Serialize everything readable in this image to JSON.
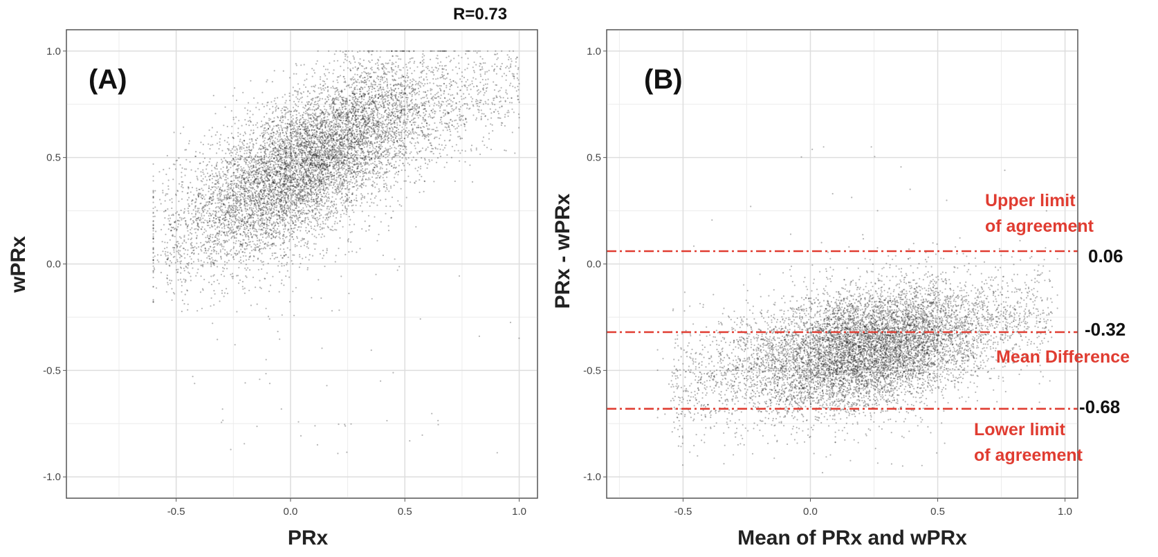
{
  "chart_data": [
    {
      "type": "scatter",
      "panel_label": "(A)",
      "xlabel": "PRx",
      "ylabel": "wPRx",
      "xlim": [
        -0.98,
        1.08
      ],
      "ylim": [
        -1.1,
        1.1
      ],
      "x_ticks": [
        -0.5,
        0.0,
        0.5,
        1.0
      ],
      "y_ticks": [
        -1.0,
        -0.5,
        0.0,
        0.5,
        1.0
      ],
      "x_tick_labels": [
        "-0.5",
        "0.0",
        "0.5",
        "1.0"
      ],
      "y_tick_labels": [
        "-1.0",
        "-0.5",
        "0.0",
        "0.5",
        "1.0"
      ],
      "grid": true,
      "annotation": "R=0.73",
      "point_color": "#1a1a1a",
      "series": [
        {
          "cloud": {
            "x_range": [
              -0.55,
              1.0
            ],
            "trend": "wPRx ≈ 0.55 + 0.4·PRx (curving toward 1.0 at PRx=1.0)",
            "densest_near": [
              0.05,
              0.42
            ]
          }
        }
      ]
    },
    {
      "type": "scatter",
      "panel_label": "(B)",
      "xlabel": "Mean of PRx and wPRx",
      "ylabel": "PRx - wPRx",
      "xlim": [
        -0.8,
        1.05
      ],
      "ylim": [
        -1.1,
        1.1
      ],
      "x_ticks": [
        -0.5,
        0.0,
        0.5,
        1.0
      ],
      "y_ticks": [
        -1.0,
        -0.5,
        0.0,
        0.5,
        1.0
      ],
      "x_tick_labels": [
        "-0.5",
        "0.0",
        "0.5",
        "1.0"
      ],
      "y_tick_labels": [
        "-1.0",
        "-0.5",
        "0.0",
        "0.5",
        "1.0"
      ],
      "grid": true,
      "point_color": "#1a1a1a",
      "reference_lines": [
        {
          "y": 0.06,
          "value_label": "0.06",
          "note": [
            "Upper limit",
            "of agreement"
          ]
        },
        {
          "y": -0.32,
          "value_label": "-0.32",
          "note": [
            "Mean Difference"
          ]
        },
        {
          "y": -0.68,
          "value_label": "-0.68",
          "note": [
            "Lower limit",
            "of agreement"
          ]
        }
      ],
      "reference_line_color": "#e03c31",
      "series": [
        {
          "cloud": {
            "x_range": [
              -0.55,
              0.95
            ],
            "mean_difference": -0.32,
            "densest_near": [
              0.25,
              -0.42
            ]
          }
        }
      ]
    }
  ]
}
